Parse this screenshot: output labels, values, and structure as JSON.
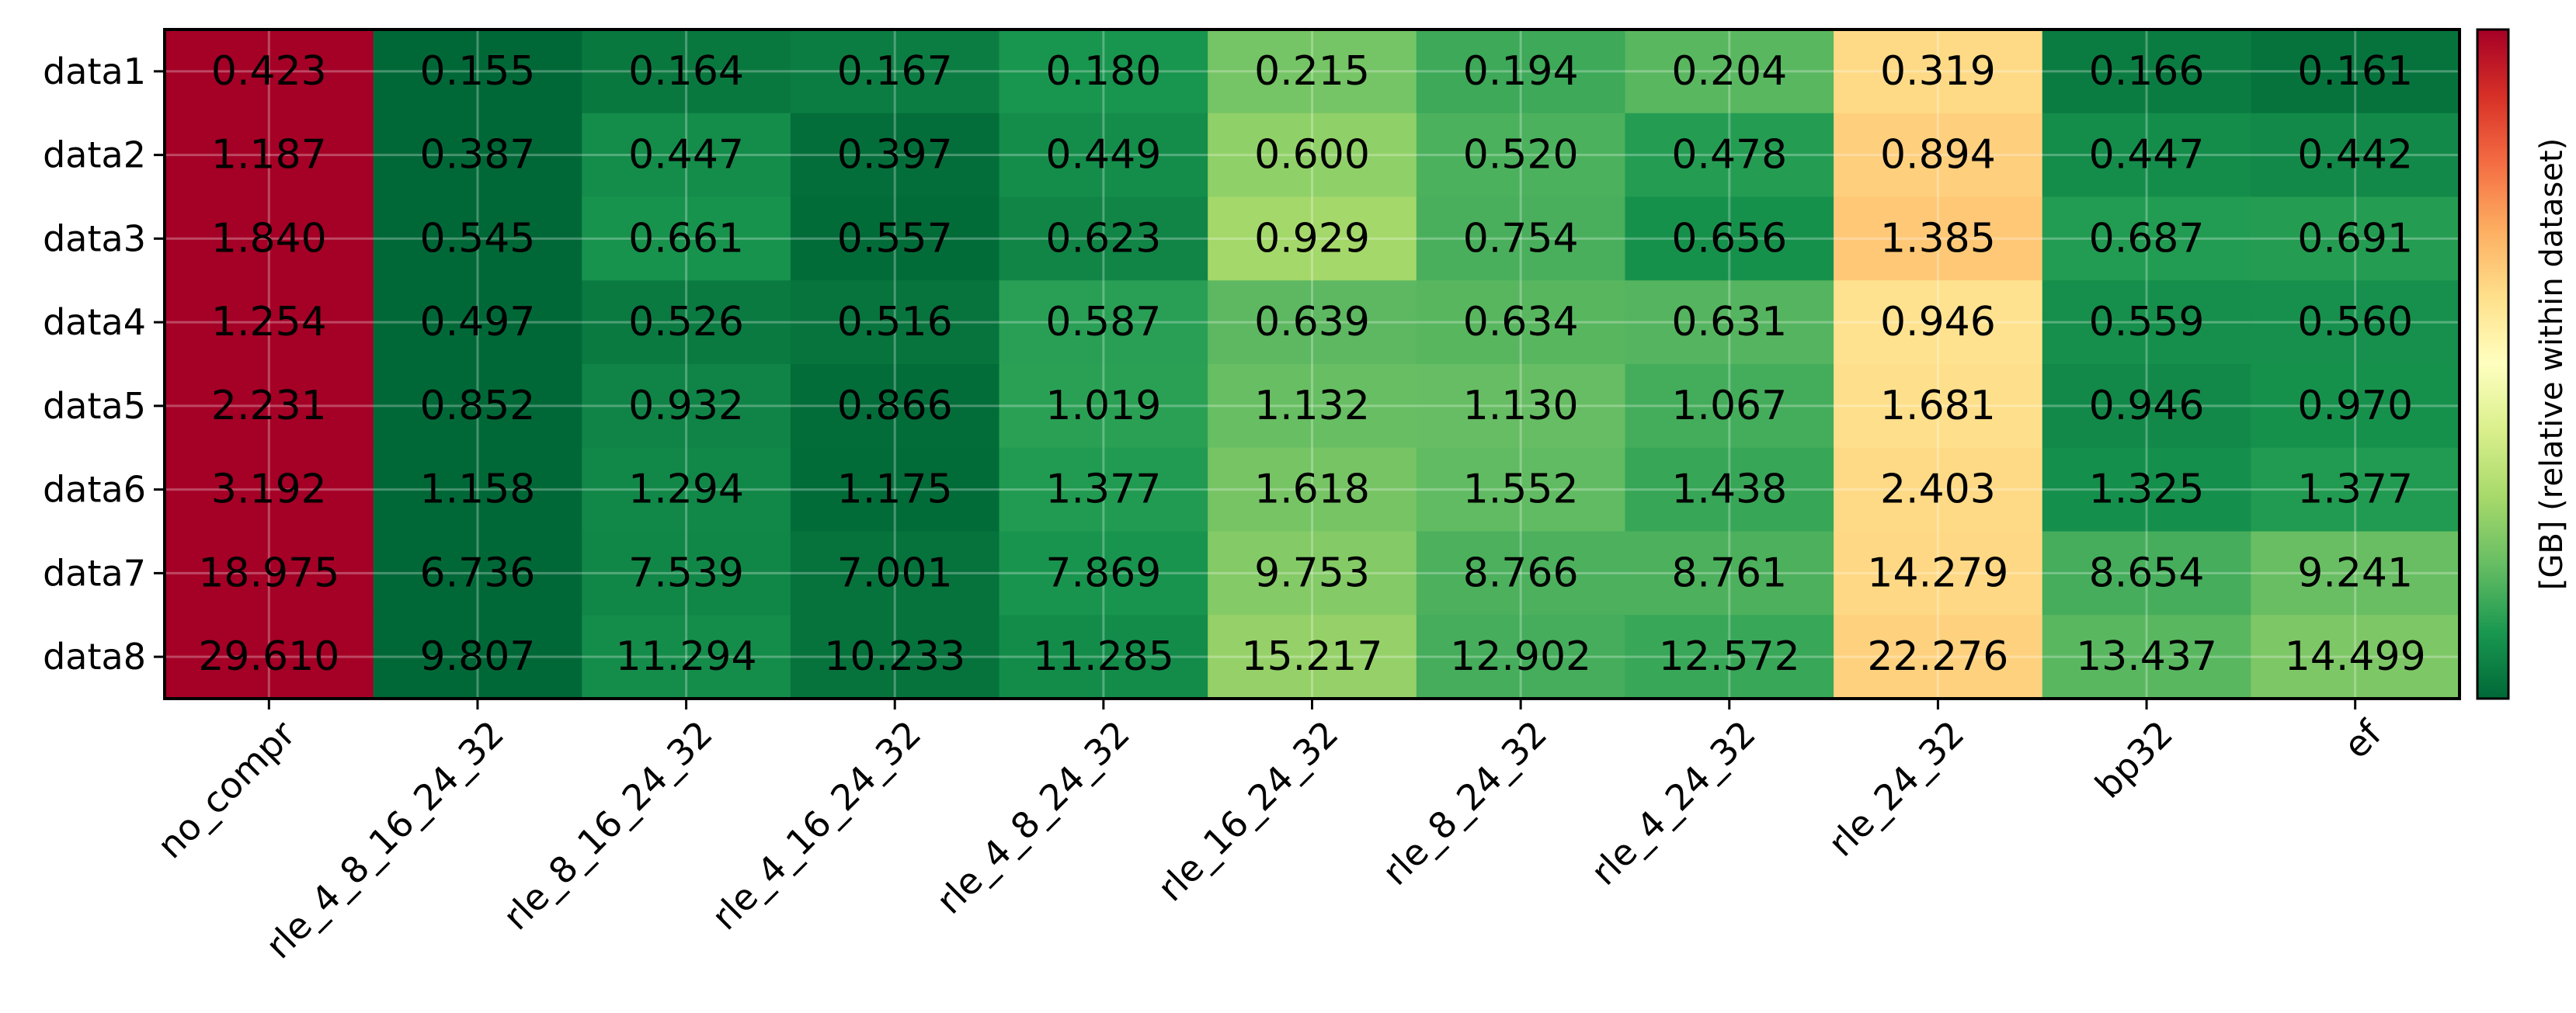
{
  "chart_data": {
    "type": "heatmap",
    "title": "",
    "xlabel": "",
    "ylabel": "",
    "rows": [
      "data1",
      "data2",
      "data3",
      "data4",
      "data5",
      "data6",
      "data7",
      "data8"
    ],
    "columns": [
      "no_compr",
      "rle_4_8_16_24_32",
      "rle_8_16_24_32",
      "rle_4_16_24_32",
      "rle_4_8_24_32",
      "rle_16_24_32",
      "rle_8_24_32",
      "rle_4_24_32",
      "rle_24_32",
      "bp32",
      "ef"
    ],
    "values": [
      [
        0.423,
        0.155,
        0.164,
        0.167,
        0.18,
        0.215,
        0.194,
        0.204,
        0.319,
        0.166,
        0.161
      ],
      [
        1.187,
        0.387,
        0.447,
        0.397,
        0.449,
        0.6,
        0.52,
        0.478,
        0.894,
        0.447,
        0.442
      ],
      [
        1.84,
        0.545,
        0.661,
        0.557,
        0.623,
        0.929,
        0.754,
        0.656,
        1.385,
        0.687,
        0.691
      ],
      [
        1.254,
        0.497,
        0.526,
        0.516,
        0.587,
        0.639,
        0.634,
        0.631,
        0.946,
        0.559,
        0.56
      ],
      [
        2.231,
        0.852,
        0.932,
        0.866,
        1.019,
        1.132,
        1.13,
        1.067,
        1.681,
        0.946,
        0.97
      ],
      [
        3.192,
        1.158,
        1.294,
        1.175,
        1.377,
        1.618,
        1.552,
        1.438,
        2.403,
        1.325,
        1.377
      ],
      [
        18.975,
        6.736,
        7.539,
        7.001,
        7.869,
        9.753,
        8.766,
        8.761,
        14.279,
        8.654,
        9.241
      ],
      [
        29.61,
        9.807,
        11.294,
        10.233,
        11.285,
        15.217,
        12.902,
        12.572,
        22.276,
        13.437,
        14.499
      ]
    ],
    "value_format": "3 decimals",
    "colormap": "RdYlGn_r",
    "color_normalization": "per row (relative within dataset)",
    "colorbar": {
      "label": "[GB] (relative within dataset)",
      "ticks": [],
      "position": "right"
    },
    "grid": true
  }
}
